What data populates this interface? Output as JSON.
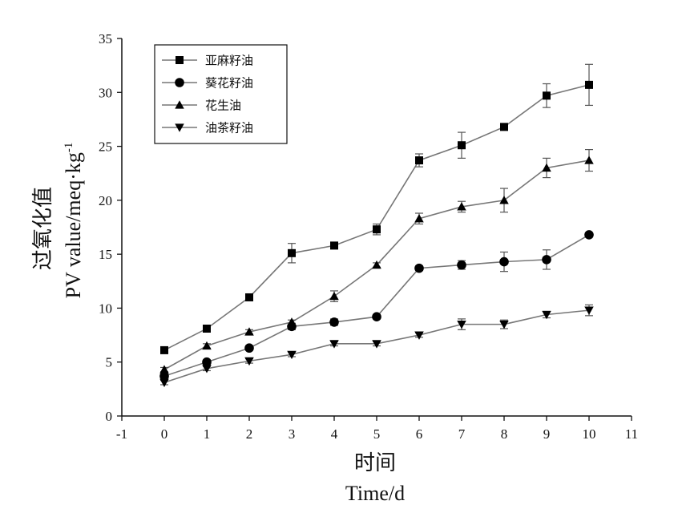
{
  "chart_data": {
    "type": "line",
    "x": [
      0,
      1,
      2,
      3,
      4,
      5,
      6,
      7,
      8,
      9,
      10
    ],
    "xlim": [
      -1,
      11
    ],
    "ylim": [
      0,
      35
    ],
    "xticks": [
      -1,
      0,
      1,
      2,
      3,
      4,
      5,
      6,
      7,
      8,
      9,
      10,
      11
    ],
    "yticks": [
      0,
      5,
      10,
      15,
      20,
      25,
      30,
      35
    ],
    "xlabel": "时间",
    "xlabel_en": "Time/d",
    "ylabel": "过氧化值",
    "ylabel_en": "PV value/meq·kg",
    "ylabel_sup": "-1",
    "grid": false,
    "legend_position": "top-left",
    "series": [
      {
        "name": "亚麻籽油",
        "marker": "square",
        "values": [
          6.1,
          8.1,
          11.0,
          15.1,
          15.8,
          17.3,
          23.7,
          25.1,
          26.8,
          29.7,
          30.7
        ],
        "errors": [
          0.2,
          0.2,
          0.2,
          0.9,
          0.3,
          0.5,
          0.6,
          1.2,
          0.3,
          1.1,
          1.9
        ]
      },
      {
        "name": "葵花籽油",
        "marker": "circle",
        "values": [
          3.7,
          5.0,
          6.3,
          8.3,
          8.7,
          9.2,
          13.7,
          14.0,
          14.3,
          14.5,
          16.8
        ],
        "errors": [
          0.2,
          0.2,
          0.2,
          0.3,
          0.3,
          0.2,
          0.2,
          0.4,
          0.9,
          0.9,
          0.2
        ]
      },
      {
        "name": "花生油",
        "marker": "triangle-up",
        "values": [
          4.3,
          6.5,
          7.8,
          8.7,
          11.1,
          14.0,
          18.3,
          19.4,
          20.0,
          23.0,
          23.7
        ],
        "errors": [
          0.2,
          0.2,
          0.2,
          0.2,
          0.5,
          0.2,
          0.5,
          0.5,
          1.1,
          0.9,
          1.0
        ]
      },
      {
        "name": "油茶籽油",
        "marker": "triangle-down",
        "values": [
          3.1,
          4.4,
          5.1,
          5.7,
          6.7,
          6.7,
          7.5,
          8.5,
          8.5,
          9.4,
          9.8
        ],
        "errors": [
          0.2,
          0.2,
          0.2,
          0.2,
          0.2,
          0.2,
          0.2,
          0.5,
          0.4,
          0.3,
          0.5
        ]
      }
    ]
  }
}
